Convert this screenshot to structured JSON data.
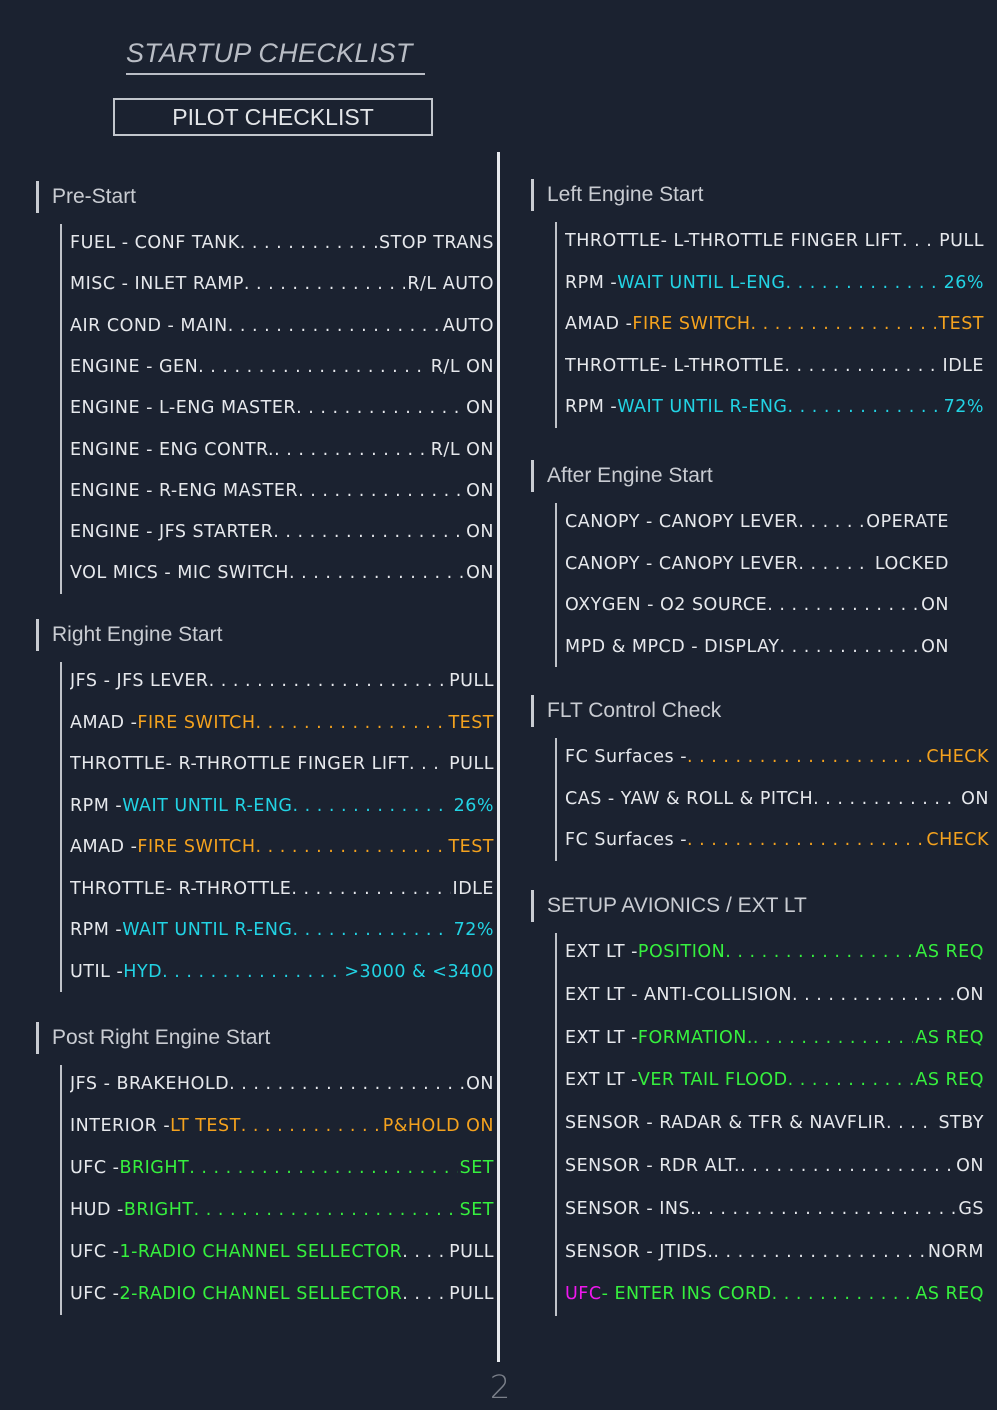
{
  "header": {
    "doc_title": "STARTUP CHECKLIST",
    "box_title": "PILOT CHECKLIST"
  },
  "page_number": "2",
  "colors": {
    "white": "#e6e8ec",
    "cyan": "#22d3e4",
    "orange": "#f4a21e",
    "green": "#36f03e",
    "magenta": "#ef18ee",
    "background": "#1b2230"
  },
  "sections": [
    {
      "title": "Pre-Start",
      "items": [
        {
          "a": "FUEL - CONF TANK",
          "b": "",
          "val": "STOP TRANS",
          "ac": "w",
          "bc": "w",
          "dc": "w",
          "vc": "w"
        },
        {
          "a": "MISC - INLET RAMP",
          "b": "",
          "val": "R/L AUTO",
          "ac": "w",
          "bc": "w",
          "dc": "w",
          "vc": "w"
        },
        {
          "a": "AIR COND - MAIN",
          "b": "",
          "val": "AUTO",
          "ac": "w",
          "bc": "w",
          "dc": "w",
          "vc": "w"
        },
        {
          "a": "ENGINE - GEN",
          "b": "",
          "val": "R/L ON",
          "ac": "w",
          "bc": "w",
          "dc": "w",
          "vc": "w"
        },
        {
          "a": "ENGINE - L-ENG MASTER",
          "b": "",
          "val": "ON",
          "ac": "w",
          "bc": "w",
          "dc": "w",
          "vc": "w"
        },
        {
          "a": "ENGINE - ENG CONTR.",
          "b": "",
          "val": "R/L ON",
          "ac": "w",
          "bc": "w",
          "dc": "w",
          "vc": "w"
        },
        {
          "a": "ENGINE - R-ENG MASTER",
          "b": "",
          "val": "ON",
          "ac": "w",
          "bc": "w",
          "dc": "w",
          "vc": "w"
        },
        {
          "a": "ENGINE - JFS STARTER",
          "b": "",
          "val": "ON",
          "ac": "w",
          "bc": "w",
          "dc": "w",
          "vc": "w"
        },
        {
          "a": "VOL MICS - MIC SWITCH",
          "b": "",
          "val": "ON",
          "ac": "w",
          "bc": "w",
          "dc": "w",
          "vc": "w"
        }
      ]
    },
    {
      "title": "Right Engine Start",
      "items": [
        {
          "a": "JFS - JFS LEVER",
          "b": "",
          "val": "PULL",
          "ac": "w",
          "bc": "w",
          "dc": "w",
          "vc": "w"
        },
        {
          "a": "AMAD - ",
          "b": "FIRE SWITCH",
          "val": "TEST",
          "ac": "w",
          "bc": "o",
          "dc": "o",
          "vc": "o"
        },
        {
          "a": "THROTTLE- R-THROTTLE FINGER LIFT",
          "b": "",
          "val": "PULL",
          "ac": "w",
          "bc": "w",
          "dc": "w",
          "vc": "w"
        },
        {
          "a": "RPM - ",
          "b": "WAIT UNTIL R-ENG",
          "val": "26%",
          "ac": "w",
          "bc": "c",
          "dc": "c",
          "vc": "c"
        },
        {
          "a": "AMAD - ",
          "b": "FIRE SWITCH",
          "val": "TEST",
          "ac": "w",
          "bc": "o",
          "dc": "o",
          "vc": "o"
        },
        {
          "a": "THROTTLE- R-THROTTLE",
          "b": "",
          "val": "IDLE",
          "ac": "w",
          "bc": "w",
          "dc": "w",
          "vc": "w"
        },
        {
          "a": "RPM - ",
          "b": "WAIT UNTIL R-ENG",
          "val": "72%",
          "ac": "w",
          "bc": "c",
          "dc": "c",
          "vc": "c"
        },
        {
          "a": "UTIL - ",
          "b": "HYD",
          "val": ">3000 & <3400",
          "ac": "w",
          "bc": "c",
          "dc": "c",
          "vc": "c"
        }
      ]
    },
    {
      "title": "Post Right Engine Start",
      "items": [
        {
          "a": "JFS - BRAKEHOLD",
          "b": "",
          "val": "ON",
          "ac": "w",
          "bc": "w",
          "dc": "w",
          "vc": "w"
        },
        {
          "a": "INTERIOR - ",
          "b": "LT TEST",
          "val": "P&HOLD ON",
          "ac": "w",
          "bc": "o",
          "dc": "o",
          "vc": "o"
        },
        {
          "a": "UFC - ",
          "b": "BRIGHT",
          "val": "SET",
          "ac": "w",
          "bc": "g",
          "dc": "g",
          "vc": "g"
        },
        {
          "a": "HUD - ",
          "b": "BRIGHT",
          "val": "SET",
          "ac": "w",
          "bc": "g",
          "dc": "g",
          "vc": "g"
        },
        {
          "a": "UFC - ",
          "b": "1-RADIO CHANNEL SELLECTOR",
          "val": "PULL",
          "ac": "w",
          "bc": "g",
          "dc": "w",
          "vc": "w"
        },
        {
          "a": "UFC - ",
          "b": "2-RADIO CHANNEL SELLECTOR",
          "val": "PULL",
          "ac": "w",
          "bc": "g",
          "dc": "w",
          "vc": "w"
        }
      ]
    },
    {
      "title": "Left Engine Start",
      "items": [
        {
          "a": "THROTTLE- L-THROTTLE FINGER LIFT",
          "b": "",
          "val": "PULL",
          "ac": "w",
          "bc": "w",
          "dc": "w",
          "vc": "w"
        },
        {
          "a": "RPM - ",
          "b": "WAIT UNTIL L-ENG",
          "val": "26%",
          "ac": "w",
          "bc": "c",
          "dc": "c",
          "vc": "c"
        },
        {
          "a": "AMAD - ",
          "b": "FIRE SWITCH",
          "val": "TEST",
          "ac": "w",
          "bc": "o",
          "dc": "o",
          "vc": "o"
        },
        {
          "a": "THROTTLE- L-THROTTLE",
          "b": "",
          "val": "IDLE",
          "ac": "w",
          "bc": "w",
          "dc": "w",
          "vc": "w"
        },
        {
          "a": "RPM - ",
          "b": "WAIT UNTIL R-ENG",
          "val": "72%",
          "ac": "w",
          "bc": "c",
          "dc": "c",
          "vc": "c"
        }
      ]
    },
    {
      "title": "After Engine Start",
      "items": [
        {
          "a": "CANOPY - CANOPY LEVER",
          "b": "",
          "val": "OPERATE",
          "ac": "w",
          "bc": "w",
          "dc": "w",
          "vc": "w"
        },
        {
          "a": "CANOPY - CANOPY LEVER",
          "b": "",
          "val": "LOCKED",
          "ac": "w",
          "bc": "w",
          "dc": "w",
          "vc": "w"
        },
        {
          "a": "OXYGEN - O2 SOURCE",
          "b": "",
          "val": "ON",
          "ac": "w",
          "bc": "w",
          "dc": "w",
          "vc": "w"
        },
        {
          "a": "MPD & MPCD - DISPLAY",
          "b": "",
          "val": "ON",
          "ac": "w",
          "bc": "w",
          "dc": "w",
          "vc": "w"
        }
      ]
    },
    {
      "title": "FLT Control Check",
      "items": [
        {
          "a": "FC Surfaces - ",
          "b": "",
          "val": "CHECK",
          "ac": "w",
          "bc": "w",
          "dc": "o",
          "vc": "o"
        },
        {
          "a": "CAS  - YAW & ROLL & PITCH",
          "b": "",
          "val": "ON",
          "ac": "w",
          "bc": "w",
          "dc": "w",
          "vc": "w"
        },
        {
          "a": "FC Surfaces - ",
          "b": "",
          "val": "CHECK",
          "ac": "w",
          "bc": "w",
          "dc": "o",
          "vc": "o"
        }
      ]
    },
    {
      "title": "SETUP AVIONICS / EXT LT",
      "items": [
        {
          "a": "EXT LT - ",
          "b": "POSITION",
          "val": "AS REQ",
          "ac": "w",
          "bc": "g",
          "dc": "g",
          "vc": "g"
        },
        {
          "a": "EXT LT - ANTI-COLLISION",
          "b": "",
          "val": "ON",
          "ac": "w",
          "bc": "w",
          "dc": "w",
          "vc": "w"
        },
        {
          "a": "EXT LT - ",
          "b": "FORMATION.",
          "val": "AS REQ",
          "ac": "w",
          "bc": "g",
          "dc": "g",
          "vc": "g"
        },
        {
          "a": "EXT LT - ",
          "b": "VER TAIL FLOOD",
          "val": "AS REQ",
          "ac": "w",
          "bc": "g",
          "dc": "g",
          "vc": "g"
        },
        {
          "a": "SENSOR - RADAR & TFR & NAVFLIR",
          "b": "",
          "val": "STBY",
          "ac": "w",
          "bc": "w",
          "dc": "w",
          "vc": "w"
        },
        {
          "a": "SENSOR - RDR ALT.",
          "b": "",
          "val": "ON",
          "ac": "w",
          "bc": "w",
          "dc": "w",
          "vc": "w"
        },
        {
          "a": "SENSOR - INS.",
          "b": "",
          "val": "GS",
          "ac": "w",
          "bc": "w",
          "dc": "w",
          "vc": "w"
        },
        {
          "a": "SENSOR - JTIDS.",
          "b": "",
          "val": "NORM",
          "ac": "w",
          "bc": "w",
          "dc": "w",
          "vc": "w"
        },
        {
          "a": "UFC",
          "b": " - ENTER INS CORD",
          "val": "AS REQ",
          "ac": "m",
          "bc": "g",
          "dc": "g",
          "vc": "g"
        }
      ]
    }
  ]
}
